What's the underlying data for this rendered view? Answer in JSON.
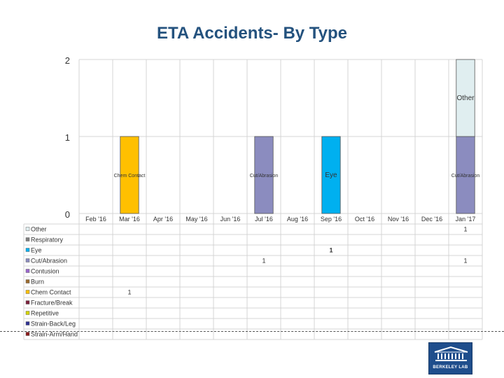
{
  "title": "ETA Accidents- By Type",
  "chart_data": {
    "type": "bar",
    "stacked": true,
    "title": "ETA Accidents- By Type",
    "categories": [
      "Feb '16",
      "Mar '16",
      "Apr '16",
      "May '16",
      "Jun '16",
      "Jul '16",
      "Aug '16",
      "Sep '16",
      "Oct '16",
      "Nov '16",
      "Dec '16",
      "Jan '17"
    ],
    "y_ticks": [
      "0",
      "1",
      "2"
    ],
    "ylim": [
      0,
      2
    ],
    "grid": true,
    "series": [
      {
        "name": "Other",
        "color": "#e0eef0",
        "values": [
          0,
          0,
          0,
          0,
          0,
          0,
          0,
          0,
          0,
          0,
          0,
          1
        ],
        "bar_label": "Other",
        "table_bold": false
      },
      {
        "name": "Respiratory",
        "color": "#7f7f7f",
        "values": [
          0,
          0,
          0,
          0,
          0,
          0,
          0,
          0,
          0,
          0,
          0,
          0
        ],
        "bar_label": "",
        "table_bold": false
      },
      {
        "name": "Eye",
        "color": "#00b0f0",
        "values": [
          0,
          0,
          0,
          0,
          0,
          0,
          0,
          1,
          0,
          0,
          0,
          0
        ],
        "bar_label": "Eye",
        "table_bold": true
      },
      {
        "name": "Cut/Abrasion",
        "color": "#8b8cbf",
        "values": [
          0,
          0,
          0,
          0,
          0,
          1,
          0,
          0,
          0,
          0,
          0,
          1
        ],
        "bar_label": "Cut/Abrasion",
        "table_bold": false
      },
      {
        "name": "Contusion",
        "color": "#9966cc",
        "values": [
          0,
          0,
          0,
          0,
          0,
          0,
          0,
          0,
          0,
          0,
          0,
          0
        ],
        "bar_label": "",
        "table_bold": false
      },
      {
        "name": "Burn",
        "color": "#9c6b2e",
        "values": [
          0,
          0,
          0,
          0,
          0,
          0,
          0,
          0,
          0,
          0,
          0,
          0
        ],
        "bar_label": "",
        "table_bold": false
      },
      {
        "name": "Chem Contact",
        "color": "#ffc000",
        "values": [
          0,
          1,
          0,
          0,
          0,
          0,
          0,
          0,
          0,
          0,
          0,
          0
        ],
        "bar_label": "Chem Contact",
        "table_bold": false
      },
      {
        "name": "Fracture/Break",
        "color": "#7b1f3a",
        "values": [
          0,
          0,
          0,
          0,
          0,
          0,
          0,
          0,
          0,
          0,
          0,
          0
        ],
        "bar_label": "",
        "table_bold": false
      },
      {
        "name": "Repetitive",
        "color": "#d4d400",
        "values": [
          0,
          0,
          0,
          0,
          0,
          0,
          0,
          0,
          0,
          0,
          0,
          0
        ],
        "bar_label": "",
        "table_bold": false
      },
      {
        "name": "Strain-Back/Leg",
        "color": "#2e3192",
        "values": [
          0,
          0,
          0,
          0,
          0,
          0,
          0,
          0,
          0,
          0,
          0,
          0
        ],
        "bar_label": "",
        "table_bold": false
      },
      {
        "name": "Strain-Arm/Hand",
        "color": "#8b1a1a",
        "values": [
          0,
          0,
          0,
          0,
          0,
          0,
          0,
          0,
          0,
          0,
          0,
          0
        ],
        "bar_label": "",
        "table_bold": false
      }
    ]
  },
  "logo": {
    "text": "BERKELEY LAB",
    "color": "#1f4e8c"
  }
}
